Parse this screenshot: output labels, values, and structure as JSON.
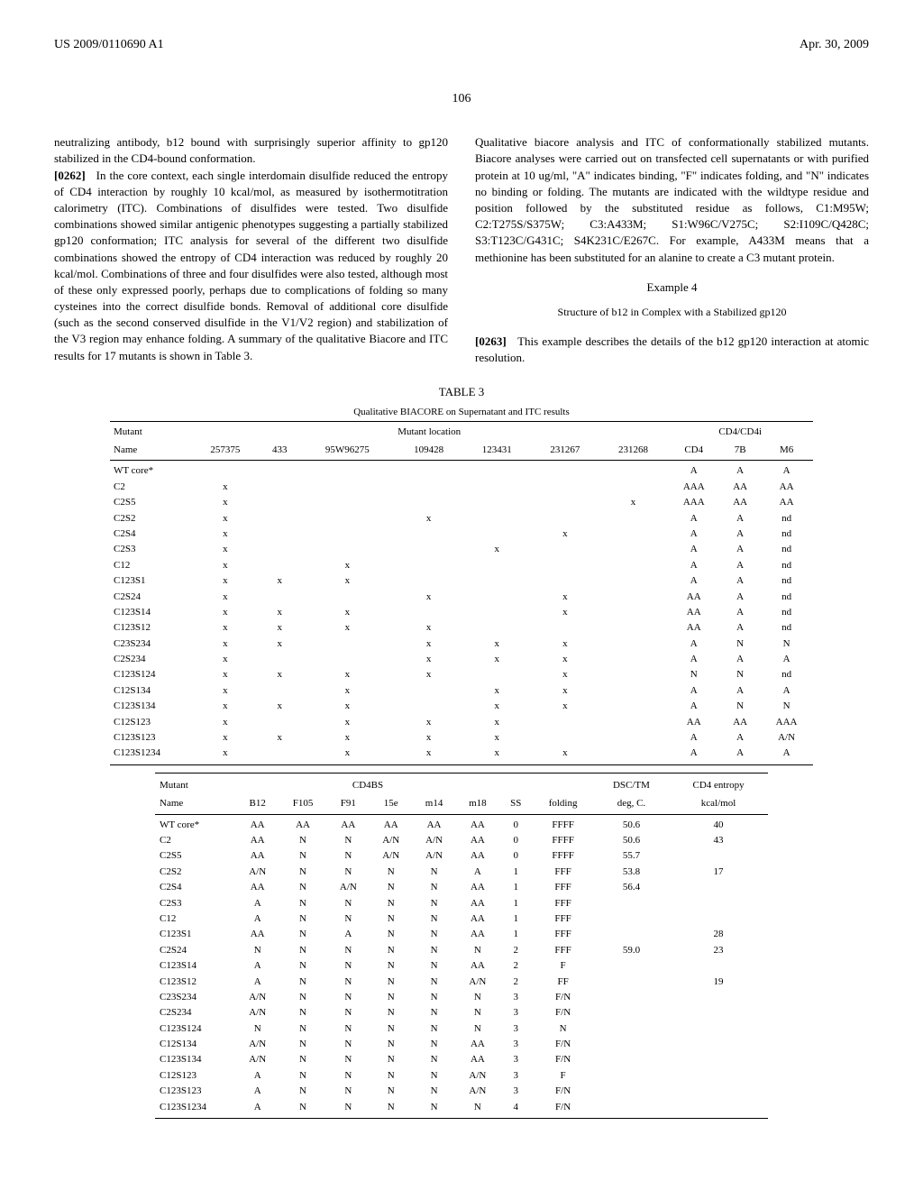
{
  "header": {
    "left": "US 2009/0110690 A1",
    "right": "Apr. 30, 2009"
  },
  "page_number": "106",
  "left_column": {
    "p1": "neutralizing antibody, b12 bound with surprisingly superior affinity to gp120 stabilized in the CD4-bound conformation.",
    "p2_num": "[0262]",
    "p2": "In the core context, each single interdomain disulfide reduced the entropy of CD4 interaction by roughly 10 kcal/mol, as measured by isothermotitration calorimetry (ITC). Combinations of disulfides were tested. Two disulfide combinations showed similar antigenic phenotypes suggesting a partially stabilized gp120 conformation; ITC analysis for several of the different two disulfide combinations showed the entropy of CD4 interaction was reduced by roughly 20 kcal/mol. Combinations of three and four disulfides were also tested, although most of these only expressed poorly, perhaps due to complications of folding so many cysteines into the correct disulfide bonds. Removal of additional core disulfide (such as the second conserved disulfide in the V1/V2 region) and stabilization of the V3 region may enhance folding. A summary of the qualitative Biacore and ITC results for 17 mutants is shown in Table 3."
  },
  "right_column": {
    "p1": "Qualitative biacore analysis and ITC of conformationally stabilized mutants. Biacore analyses were carried out on transfected cell supernatants or with purified protein at 10 ug/ml, \"A\" indicates binding, \"F\" indicates folding, and \"N\" indicates no binding or folding. The mutants are indicated with the wildtype residue and position followed by the substituted residue as follows, C1:M95W; C2:T275S/S375W; C3:A433M; S1:W96C/V275C; S2:I109C/Q428C; S3:T123C/G431C; S4K231C/E267C. For example, A433M means that a methionine has been substituted for an alanine to create a C3 mutant protein.",
    "example_num": "Example 4",
    "example_title": "Structure of b12 in Complex with a Stabilized gp120",
    "p2_num": "[0263]",
    "p2": "This example describes the details of the b12 gp120 interaction at atomic resolution."
  },
  "table": {
    "caption": "TABLE 3",
    "title": "Qualitative BIACORE on Supernatant and ITC results",
    "section1": {
      "group_headers": {
        "mutant": "Mutant",
        "location": "Mutant location",
        "cd4": "CD4/CD4i"
      },
      "col_headers": [
        "Name",
        "257375",
        "433",
        "95W96275",
        "109428",
        "123431",
        "231267",
        "231268",
        "CD4",
        "7B",
        "M6"
      ],
      "rows": [
        {
          "name": "WT core*",
          "c": [
            "",
            "",
            "",
            "",
            "",
            "",
            "",
            "A",
            "A",
            "A"
          ]
        },
        {
          "name": "C2",
          "c": [
            "x",
            "",
            "",
            "",
            "",
            "",
            "",
            "AAA",
            "AA",
            "AA"
          ]
        },
        {
          "name": "C2S5",
          "c": [
            "x",
            "",
            "",
            "",
            "",
            "",
            "x",
            "AAA",
            "AA",
            "AA"
          ]
        },
        {
          "name": "C2S2",
          "c": [
            "x",
            "",
            "",
            "x",
            "",
            "",
            "",
            "A",
            "A",
            "nd"
          ]
        },
        {
          "name": "C2S4",
          "c": [
            "x",
            "",
            "",
            "",
            "",
            "x",
            "",
            "A",
            "A",
            "nd"
          ]
        },
        {
          "name": "C2S3",
          "c": [
            "x",
            "",
            "",
            "",
            "x",
            "",
            "",
            "A",
            "A",
            "nd"
          ]
        },
        {
          "name": "C12",
          "c": [
            "x",
            "",
            "x",
            "",
            "",
            "",
            "",
            "A",
            "A",
            "nd"
          ]
        },
        {
          "name": "C123S1",
          "c": [
            "x",
            "x",
            "x",
            "",
            "",
            "",
            "",
            "A",
            "A",
            "nd"
          ]
        },
        {
          "name": "C2S24",
          "c": [
            "x",
            "",
            "",
            "x",
            "",
            "x",
            "",
            "AA",
            "A",
            "nd"
          ]
        },
        {
          "name": "C123S14",
          "c": [
            "x",
            "x",
            "x",
            "",
            "",
            "x",
            "",
            "AA",
            "A",
            "nd"
          ]
        },
        {
          "name": "C123S12",
          "c": [
            "x",
            "x",
            "x",
            "x",
            "",
            "",
            "",
            "AA",
            "A",
            "nd"
          ]
        },
        {
          "name": "C23S234",
          "c": [
            "x",
            "x",
            "",
            "x",
            "x",
            "x",
            "",
            "A",
            "N",
            "N"
          ]
        },
        {
          "name": "C2S234",
          "c": [
            "x",
            "",
            "",
            "x",
            "x",
            "x",
            "",
            "A",
            "A",
            "A"
          ]
        },
        {
          "name": "C123S124",
          "c": [
            "x",
            "x",
            "x",
            "x",
            "",
            "x",
            "",
            "N",
            "N",
            "nd"
          ]
        },
        {
          "name": "C12S134",
          "c": [
            "x",
            "",
            "x",
            "",
            "x",
            "x",
            "",
            "A",
            "A",
            "A"
          ]
        },
        {
          "name": "C123S134",
          "c": [
            "x",
            "x",
            "x",
            "",
            "x",
            "x",
            "",
            "A",
            "N",
            "N"
          ]
        },
        {
          "name": "C12S123",
          "c": [
            "x",
            "",
            "x",
            "x",
            "x",
            "",
            "",
            "AA",
            "AA",
            "AAA"
          ]
        },
        {
          "name": "C123S123",
          "c": [
            "x",
            "x",
            "x",
            "x",
            "x",
            "",
            "",
            "A",
            "A",
            "A/N"
          ]
        },
        {
          "name": "C123S1234",
          "c": [
            "x",
            "",
            "x",
            "x",
            "x",
            "x",
            "",
            "A",
            "A",
            "A"
          ]
        }
      ]
    },
    "section2": {
      "group_headers": {
        "mutant": "Mutant",
        "cd4bs": "CD4BS",
        "dsc": "DSC/TM",
        "entropy": "CD4 entropy"
      },
      "col_headers": [
        "Name",
        "B12",
        "F105",
        "F91",
        "15e",
        "m14",
        "m18",
        "SS",
        "folding",
        "deg, C.",
        "kcal/mol"
      ],
      "rows": [
        {
          "name": "WT core*",
          "c": [
            "AA",
            "AA",
            "AA",
            "AA",
            "AA",
            "AA",
            "0",
            "FFFF",
            "50.6",
            "40"
          ]
        },
        {
          "name": "C2",
          "c": [
            "AA",
            "N",
            "N",
            "A/N",
            "A/N",
            "AA",
            "0",
            "FFFF",
            "50.6",
            "43"
          ]
        },
        {
          "name": "C2S5",
          "c": [
            "AA",
            "N",
            "N",
            "A/N",
            "A/N",
            "AA",
            "0",
            "FFFF",
            "55.7",
            ""
          ]
        },
        {
          "name": "C2S2",
          "c": [
            "A/N",
            "N",
            "N",
            "N",
            "N",
            "A",
            "1",
            "FFF",
            "53.8",
            "17"
          ]
        },
        {
          "name": "C2S4",
          "c": [
            "AA",
            "N",
            "A/N",
            "N",
            "N",
            "AA",
            "1",
            "FFF",
            "56.4",
            ""
          ]
        },
        {
          "name": "C2S3",
          "c": [
            "A",
            "N",
            "N",
            "N",
            "N",
            "AA",
            "1",
            "FFF",
            "",
            ""
          ]
        },
        {
          "name": "C12",
          "c": [
            "A",
            "N",
            "N",
            "N",
            "N",
            "AA",
            "1",
            "FFF",
            "",
            ""
          ]
        },
        {
          "name": "C123S1",
          "c": [
            "AA",
            "N",
            "A",
            "N",
            "N",
            "AA",
            "1",
            "FFF",
            "",
            "28"
          ]
        },
        {
          "name": "C2S24",
          "c": [
            "N",
            "N",
            "N",
            "N",
            "N",
            "N",
            "2",
            "FFF",
            "59.0",
            "23"
          ]
        },
        {
          "name": "C123S14",
          "c": [
            "A",
            "N",
            "N",
            "N",
            "N",
            "AA",
            "2",
            "F",
            "",
            ""
          ]
        },
        {
          "name": "C123S12",
          "c": [
            "A",
            "N",
            "N",
            "N",
            "N",
            "A/N",
            "2",
            "FF",
            "",
            "19"
          ]
        },
        {
          "name": "C23S234",
          "c": [
            "A/N",
            "N",
            "N",
            "N",
            "N",
            "N",
            "3",
            "F/N",
            "",
            ""
          ]
        },
        {
          "name": "C2S234",
          "c": [
            "A/N",
            "N",
            "N",
            "N",
            "N",
            "N",
            "3",
            "F/N",
            "",
            ""
          ]
        },
        {
          "name": "C123S124",
          "c": [
            "N",
            "N",
            "N",
            "N",
            "N",
            "N",
            "3",
            "N",
            "",
            ""
          ]
        },
        {
          "name": "C12S134",
          "c": [
            "A/N",
            "N",
            "N",
            "N",
            "N",
            "AA",
            "3",
            "F/N",
            "",
            ""
          ]
        },
        {
          "name": "C123S134",
          "c": [
            "A/N",
            "N",
            "N",
            "N",
            "N",
            "AA",
            "3",
            "F/N",
            "",
            ""
          ]
        },
        {
          "name": "C12S123",
          "c": [
            "A",
            "N",
            "N",
            "N",
            "N",
            "A/N",
            "3",
            "F",
            "",
            ""
          ]
        },
        {
          "name": "C123S123",
          "c": [
            "A",
            "N",
            "N",
            "N",
            "N",
            "A/N",
            "3",
            "F/N",
            "",
            ""
          ]
        },
        {
          "name": "C123S1234",
          "c": [
            "A",
            "N",
            "N",
            "N",
            "N",
            "N",
            "4",
            "F/N",
            "",
            ""
          ]
        }
      ]
    }
  }
}
